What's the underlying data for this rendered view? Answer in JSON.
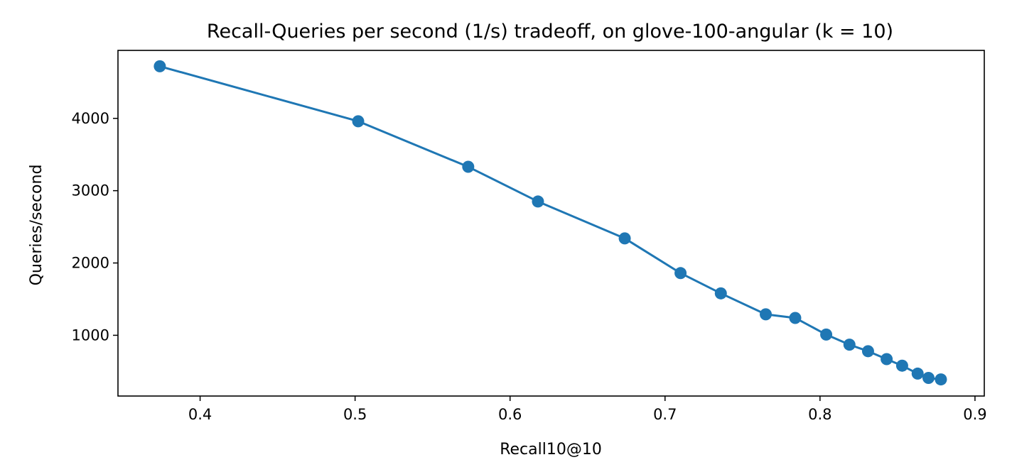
{
  "chart_data": {
    "type": "line",
    "title": "Recall-Queries per second (1/s) tradeoff, on glove-100-angular (k = 10)",
    "xlabel": "Recall10@10",
    "ylabel": "Queries/second",
    "xlim": [
      0.347,
      0.906
    ],
    "ylim": [
      160,
      4940
    ],
    "xticks": [
      0.4,
      0.5,
      0.6,
      0.7,
      0.8,
      0.9
    ],
    "xtick_labels": [
      "0.4",
      "0.5",
      "0.6",
      "0.7",
      "0.8",
      "0.9"
    ],
    "yticks": [
      1000,
      2000,
      3000,
      4000
    ],
    "ytick_labels": [
      "1000",
      "2000",
      "3000",
      "4000"
    ],
    "grid": false,
    "legend": "none",
    "series": [
      {
        "color": "#1f77b4",
        "marker": "circle",
        "x": [
          0.374,
          0.502,
          0.573,
          0.618,
          0.674,
          0.71,
          0.736,
          0.765,
          0.784,
          0.804,
          0.819,
          0.831,
          0.843,
          0.853,
          0.863,
          0.87,
          0.878
        ],
        "y": [
          4720,
          3960,
          3330,
          2850,
          2340,
          1860,
          1580,
          1290,
          1240,
          1010,
          870,
          780,
          670,
          580,
          470,
          410,
          390
        ]
      }
    ]
  }
}
